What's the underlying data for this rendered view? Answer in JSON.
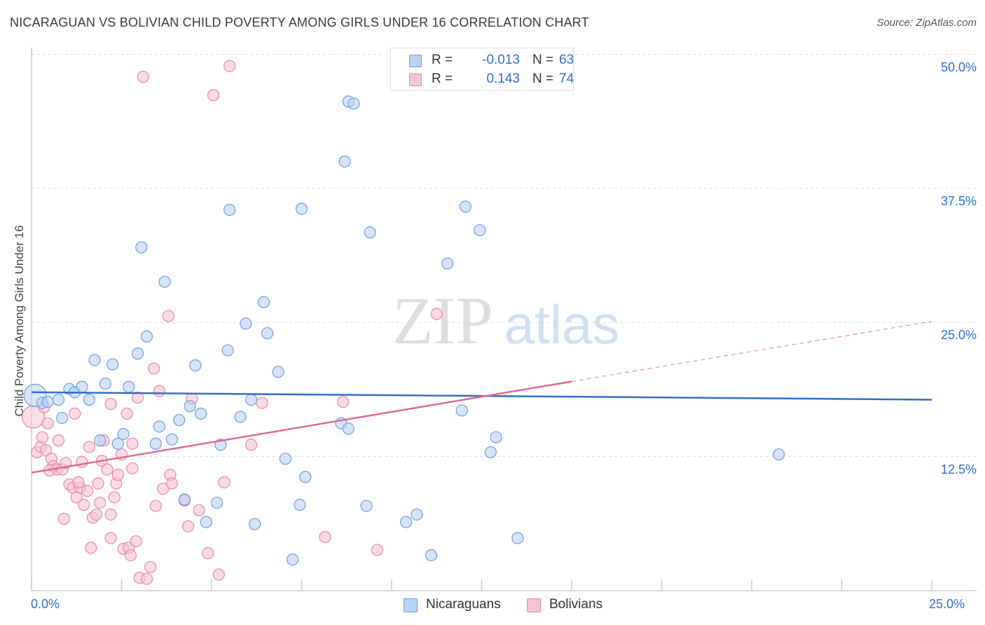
{
  "header": {
    "title": "NICARAGUAN VS BOLIVIAN CHILD POVERTY AMONG GIRLS UNDER 16 CORRELATION CHART",
    "source": "Source: ZipAtlas.com"
  },
  "watermark": {
    "zip": "ZIP",
    "atlas": "atlas"
  },
  "legend_top": {
    "r_label": "R =",
    "n_label": "N =",
    "rows": [
      {
        "series": "Nicaraguans",
        "r": "-0.013",
        "n": "63"
      },
      {
        "series": "Bolivians",
        "r": "0.143",
        "n": "74"
      }
    ]
  },
  "legend_bottom": [
    "Nicaraguans",
    "Bolivians"
  ],
  "colors": {
    "nicaraguans_fill": "#b9d2f2",
    "nicaraguans_stroke": "#6f9ee0",
    "nicaraguans_line": "#2f6fcc",
    "bolivians_fill": "#f7c3d3",
    "bolivians_stroke": "#e888a8",
    "bolivians_line": "#e06792",
    "tick_text": "#2f6fcc"
  },
  "chart_data": {
    "type": "scatter",
    "title": "NICARAGUAN VS BOLIVIAN CHILD POVERTY AMONG GIRLS UNDER 16 CORRELATION CHART",
    "xlabel": "",
    "ylabel": "Child Poverty Among Girls Under 16",
    "xlim": [
      0,
      25
    ],
    "ylim": [
      0,
      52
    ],
    "x_tick_labels": [
      {
        "value": 0,
        "label": "0.0%"
      },
      {
        "value": 25,
        "label": "25.0%"
      }
    ],
    "y_tick_labels": [
      {
        "value": 12.5,
        "label": "12.5%"
      },
      {
        "value": 25,
        "label": "25.0%"
      },
      {
        "value": 37.5,
        "label": "37.5%"
      },
      {
        "value": 50,
        "label": "50.0%"
      }
    ],
    "grid": true,
    "legend_position": "top-center",
    "series": [
      {
        "name": "Nicaraguans",
        "points": [
          [
            0.1,
            18.2
          ],
          [
            0.3,
            17.5
          ],
          [
            0.45,
            17.6
          ],
          [
            0.75,
            17.8
          ],
          [
            0.85,
            16.1
          ],
          [
            1.05,
            18.8
          ],
          [
            1.2,
            18.5
          ],
          [
            1.4,
            19.0
          ],
          [
            1.6,
            17.8
          ],
          [
            1.75,
            21.5
          ],
          [
            1.9,
            14.0
          ],
          [
            2.05,
            19.3
          ],
          [
            2.25,
            21.1
          ],
          [
            2.4,
            13.7
          ],
          [
            2.55,
            14.6
          ],
          [
            2.7,
            19.0
          ],
          [
            2.95,
            22.1
          ],
          [
            3.05,
            32.0
          ],
          [
            3.2,
            23.7
          ],
          [
            3.45,
            13.7
          ],
          [
            3.55,
            15.3
          ],
          [
            3.7,
            28.8
          ],
          [
            3.9,
            14.1
          ],
          [
            4.1,
            15.9
          ],
          [
            4.25,
            8.5
          ],
          [
            4.4,
            17.2
          ],
          [
            4.55,
            21.0
          ],
          [
            4.7,
            16.5
          ],
          [
            4.85,
            6.4
          ],
          [
            5.15,
            8.2
          ],
          [
            5.25,
            13.6
          ],
          [
            5.45,
            22.4
          ],
          [
            5.5,
            35.5
          ],
          [
            5.8,
            16.2
          ],
          [
            5.95,
            24.9
          ],
          [
            6.1,
            17.8
          ],
          [
            6.2,
            6.2
          ],
          [
            6.45,
            26.9
          ],
          [
            6.55,
            24.0
          ],
          [
            6.85,
            20.4
          ],
          [
            7.05,
            12.3
          ],
          [
            7.25,
            2.9
          ],
          [
            7.5,
            35.6
          ],
          [
            7.45,
            8.0
          ],
          [
            7.6,
            10.6
          ],
          [
            8.6,
            15.6
          ],
          [
            8.8,
            15.1
          ],
          [
            8.7,
            40.0
          ],
          [
            8.8,
            45.6
          ],
          [
            8.95,
            45.4
          ],
          [
            9.3,
            7.9
          ],
          [
            9.4,
            33.4
          ],
          [
            10.4,
            6.4
          ],
          [
            10.7,
            7.1
          ],
          [
            11.1,
            3.3
          ],
          [
            11.55,
            30.5
          ],
          [
            11.95,
            16.8
          ],
          [
            12.05,
            35.8
          ],
          [
            12.45,
            33.6
          ],
          [
            12.75,
            12.9
          ],
          [
            12.9,
            14.3
          ],
          [
            13.5,
            4.9
          ],
          [
            20.75,
            12.7
          ]
        ]
      },
      {
        "name": "Bolivians",
        "points": [
          [
            0.05,
            16.2
          ],
          [
            0.15,
            12.9
          ],
          [
            0.25,
            13.4
          ],
          [
            0.35,
            17.1
          ],
          [
            0.4,
            13.1
          ],
          [
            0.45,
            15.6
          ],
          [
            0.55,
            12.3
          ],
          [
            0.6,
            11.6
          ],
          [
            0.7,
            11.3
          ],
          [
            0.75,
            14.0
          ],
          [
            0.85,
            11.3
          ],
          [
            0.9,
            6.7
          ],
          [
            0.95,
            11.9
          ],
          [
            1.05,
            9.9
          ],
          [
            1.15,
            9.6
          ],
          [
            1.2,
            16.5
          ],
          [
            1.25,
            8.7
          ],
          [
            1.35,
            9.6
          ],
          [
            1.4,
            12.0
          ],
          [
            1.45,
            8.0
          ],
          [
            1.55,
            9.3
          ],
          [
            1.6,
            13.4
          ],
          [
            1.7,
            6.8
          ],
          [
            1.65,
            4.0
          ],
          [
            1.8,
            7.1
          ],
          [
            1.85,
            10.0
          ],
          [
            1.9,
            8.2
          ],
          [
            1.95,
            12.1
          ],
          [
            2.0,
            14.0
          ],
          [
            2.1,
            11.3
          ],
          [
            2.2,
            17.4
          ],
          [
            2.2,
            7.1
          ],
          [
            2.2,
            4.9
          ],
          [
            2.35,
            10.0
          ],
          [
            2.4,
            10.8
          ],
          [
            2.5,
            12.7
          ],
          [
            2.55,
            3.9
          ],
          [
            2.65,
            16.5
          ],
          [
            2.7,
            4.0
          ],
          [
            2.75,
            3.3
          ],
          [
            2.8,
            11.4
          ],
          [
            2.8,
            13.7
          ],
          [
            2.9,
            4.6
          ],
          [
            2.95,
            18.0
          ],
          [
            3.0,
            1.2
          ],
          [
            3.1,
            47.9
          ],
          [
            3.2,
            1.1
          ],
          [
            3.3,
            2.2
          ],
          [
            3.4,
            20.7
          ],
          [
            3.45,
            7.9
          ],
          [
            3.55,
            18.6
          ],
          [
            3.65,
            9.5
          ],
          [
            3.8,
            25.6
          ],
          [
            3.85,
            10.8
          ],
          [
            3.9,
            10.0
          ],
          [
            4.25,
            8.4
          ],
          [
            4.35,
            6.0
          ],
          [
            4.45,
            17.9
          ],
          [
            4.65,
            7.5
          ],
          [
            4.9,
            3.5
          ],
          [
            5.05,
            46.2
          ],
          [
            5.2,
            1.5
          ],
          [
            5.35,
            10.1
          ],
          [
            5.5,
            48.9
          ],
          [
            6.1,
            13.6
          ],
          [
            6.4,
            17.5
          ],
          [
            8.15,
            5.0
          ],
          [
            8.65,
            17.6
          ],
          [
            9.6,
            3.8
          ],
          [
            11.25,
            25.8
          ],
          [
            0.3,
            14.3
          ],
          [
            0.5,
            11.2
          ],
          [
            1.3,
            10.1
          ],
          [
            2.3,
            8.7
          ]
        ]
      }
    ],
    "trend_lines": [
      {
        "series": "Nicaraguans",
        "from": [
          0,
          18.5
        ],
        "to": [
          25,
          17.8
        ],
        "style": "solid"
      },
      {
        "series": "Bolivians",
        "from": [
          0,
          11.0
        ],
        "to": [
          15,
          19.5
        ],
        "style": "solid",
        "extended_to": [
          25,
          25.1
        ],
        "extended_style": "dashed"
      }
    ]
  }
}
